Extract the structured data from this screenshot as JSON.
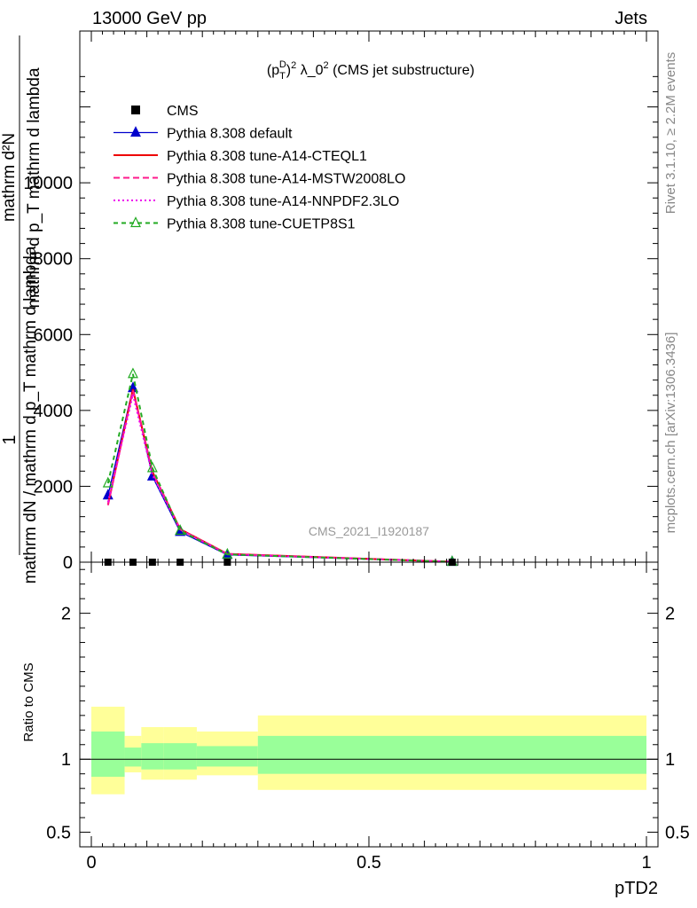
{
  "header": {
    "left": "13000 GeV pp",
    "right": "Jets"
  },
  "side_labels": {
    "rivet": "Rivet 3.1.10, ≥ 2.2M events",
    "mcplots": "mcplots.cern.ch [arXiv:1306.3436]"
  },
  "chart_data": {
    "type": "line",
    "title": "(pTD)2 λ_02 (CMS jet substructure)",
    "title_parts": {
      "p": "(p",
      "sup": "D",
      "sub": "T",
      "close": ")",
      "sq": "2",
      "lam": " λ_0",
      "lsq": "2",
      "rest": " (CMS jet substructure)"
    },
    "analysis_label": "CMS_2021_I1920187",
    "xlabel": "pTD2",
    "ylabel_main": {
      "one": "1",
      "den": "mathrm dN / mathrm d p_T mathrm d lambda",
      "num": "mathrm d²N",
      "num2": "mathrm d p_T mathrm d lambda"
    },
    "ylabel_ratio": "Ratio to CMS",
    "xlim": [
      0,
      1
    ],
    "main_ylim": [
      0,
      14000
    ],
    "ratio_ylim": [
      0.4,
      2.35
    ],
    "x_ticks": [
      {
        "v": 0,
        "label": "0"
      },
      {
        "v": 0.5,
        "label": "0.5"
      },
      {
        "v": 1,
        "label": "1"
      }
    ],
    "main_y_ticks": [
      {
        "v": 0,
        "label": "0"
      },
      {
        "v": 2000,
        "label": "2000"
      },
      {
        "v": 4000,
        "label": "4000"
      },
      {
        "v": 6000,
        "label": "6000"
      },
      {
        "v": 8000,
        "label": "8000"
      },
      {
        "v": 10000,
        "label": "10000"
      }
    ],
    "ratio_y_ticks": [
      {
        "v": 0.5,
        "label": "0.5"
      },
      {
        "v": 1,
        "label": "1"
      },
      {
        "v": 2,
        "label": "2"
      }
    ],
    "bins": [
      {
        "lo": 0.0,
        "hi": 0.06
      },
      {
        "lo": 0.06,
        "hi": 0.09
      },
      {
        "lo": 0.09,
        "hi": 0.13
      },
      {
        "lo": 0.13,
        "hi": 0.19
      },
      {
        "lo": 0.19,
        "hi": 0.3
      },
      {
        "lo": 0.3,
        "hi": 1.0
      }
    ],
    "data_series": {
      "name": "CMS",
      "x": [
        0.03,
        0.075,
        0.11,
        0.16,
        0.245,
        0.65
      ],
      "values": [
        0,
        0,
        0,
        0,
        0,
        0
      ]
    },
    "series": [
      {
        "name": "Pythia 8.308 default",
        "color": "#0000cc",
        "dash": "",
        "marker": "triangle-filled",
        "x": [
          0.03,
          0.075,
          0.11,
          0.16,
          0.245,
          0.65
        ],
        "values": [
          1760,
          4590,
          2260,
          800,
          195,
          10
        ]
      },
      {
        "name": "Pythia 8.308 tune-A14-CTEQL1",
        "color": "#ee0000",
        "dash": "",
        "marker": "none",
        "x": [
          0.03,
          0.075,
          0.11,
          0.16,
          0.245,
          0.65
        ],
        "values": [
          1520,
          4560,
          2380,
          870,
          220,
          12
        ]
      },
      {
        "name": "Pythia 8.308 tune-A14-MSTW2008LO",
        "color": "#ff1a8c",
        "dash": "7,4",
        "marker": "none",
        "x": [
          0.03,
          0.075,
          0.11,
          0.16,
          0.245,
          0.65
        ],
        "values": [
          1500,
          4520,
          2380,
          860,
          215,
          12
        ]
      },
      {
        "name": "Pythia 8.308 tune-A14-NNPDF2.3LO",
        "color": "#ee00ee",
        "dash": "2,3",
        "marker": "none",
        "x": [
          0.03,
          0.075,
          0.11,
          0.16,
          0.245,
          0.65
        ],
        "values": [
          1580,
          4420,
          2300,
          850,
          210,
          11
        ]
      },
      {
        "name": "Pythia 8.308 tune-CUETP8S1",
        "color": "#22aa22",
        "dash": "5,4",
        "marker": "triangle-open",
        "x": [
          0.03,
          0.075,
          0.11,
          0.16,
          0.245,
          0.65
        ],
        "values": [
          2080,
          4960,
          2480,
          830,
          205,
          10
        ]
      }
    ],
    "ratio_bands": [
      {
        "lo": 0.0,
        "hi": 0.06,
        "inner": [
          0.88,
          1.19
        ],
        "outer": [
          0.76,
          1.36
        ]
      },
      {
        "lo": 0.06,
        "hi": 0.09,
        "inner": [
          0.95,
          1.08
        ],
        "outer": [
          0.91,
          1.16
        ]
      },
      {
        "lo": 0.09,
        "hi": 0.13,
        "inner": [
          0.93,
          1.11
        ],
        "outer": [
          0.86,
          1.22
        ]
      },
      {
        "lo": 0.13,
        "hi": 0.19,
        "inner": [
          0.93,
          1.11
        ],
        "outer": [
          0.86,
          1.22
        ]
      },
      {
        "lo": 0.19,
        "hi": 0.3,
        "inner": [
          0.95,
          1.09
        ],
        "outer": [
          0.89,
          1.19
        ]
      },
      {
        "lo": 0.3,
        "hi": 1.0,
        "inner": [
          0.9,
          1.16
        ],
        "outer": [
          0.79,
          1.3
        ]
      }
    ],
    "colors": {
      "band_inner": "#99ff99",
      "band_outer": "#ffff99"
    },
    "legend_position": "top-left"
  }
}
